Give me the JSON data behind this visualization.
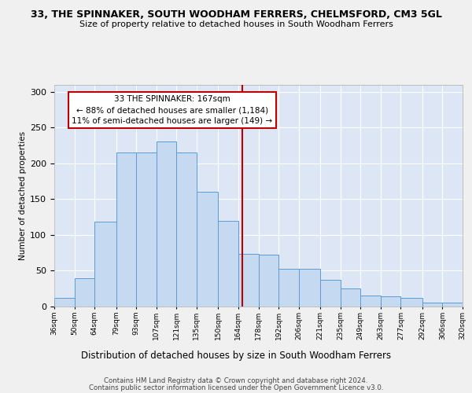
{
  "title": "33, THE SPINNAKER, SOUTH WOODHAM FERRERS, CHELMSFORD, CM3 5GL",
  "subtitle": "Size of property relative to detached houses in South Woodham Ferrers",
  "xlabel": "Distribution of detached houses by size in South Woodham Ferrers",
  "ylabel": "Number of detached properties",
  "footer_line1": "Contains HM Land Registry data © Crown copyright and database right 2024.",
  "footer_line2": "Contains public sector information licensed under the Open Government Licence v3.0.",
  "annotation_title": "33 THE SPINNAKER: 167sqm",
  "annotation_line1": "← 88% of detached houses are smaller (1,184)",
  "annotation_line2": "11% of semi-detached houses are larger (149) →",
  "property_size": 167,
  "bin_edges": [
    36,
    50,
    64,
    79,
    93,
    107,
    121,
    135,
    150,
    164,
    178,
    192,
    206,
    221,
    235,
    249,
    263,
    277,
    292,
    306,
    320
  ],
  "bar_heights": [
    12,
    40,
    118,
    215,
    215,
    230,
    215,
    160,
    120,
    73,
    72,
    53,
    53,
    37,
    25,
    15,
    14,
    12,
    5,
    5
  ],
  "tick_labels": [
    "36sqm",
    "50sqm",
    "64sqm",
    "79sqm",
    "93sqm",
    "107sqm",
    "121sqm",
    "135sqm",
    "150sqm",
    "164sqm",
    "178sqm",
    "192sqm",
    "206sqm",
    "221sqm",
    "235sqm",
    "249sqm",
    "263sqm",
    "277sqm",
    "292sqm",
    "306sqm",
    "320sqm"
  ],
  "bar_color": "#c5d9f0",
  "bar_edge_color": "#5b9bd5",
  "vline_color": "#c00000",
  "annotation_edge_color": "#c00000",
  "plot_bg_color": "#dce6f5",
  "fig_bg_color": "#f0f0f0",
  "grid_color": "#ffffff",
  "ylim": [
    0,
    310
  ],
  "yticks": [
    0,
    50,
    100,
    150,
    200,
    250,
    300
  ]
}
